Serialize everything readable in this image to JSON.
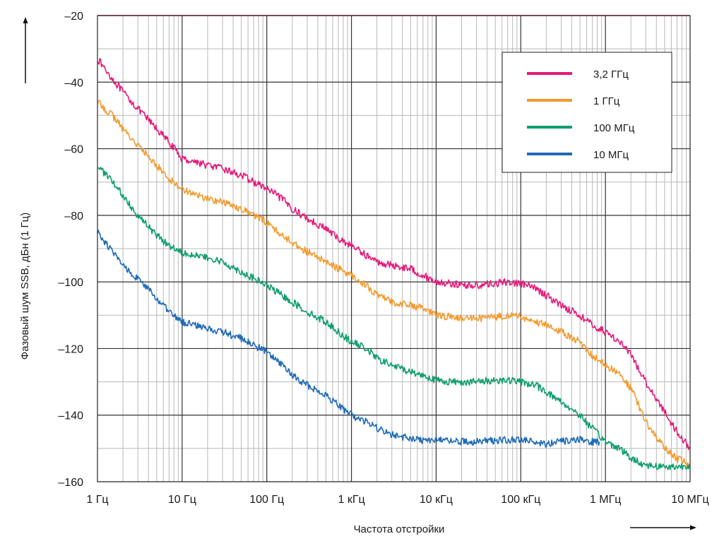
{
  "chart_data": {
    "type": "line",
    "title": "",
    "xlabel": "Частота отстройки",
    "ylabel": "Фазовый шум SSB, дБн (1 Гц)",
    "x_scale": "log",
    "xlim": [
      1,
      10000000
    ],
    "ylim": [
      -160,
      -20
    ],
    "grid": true,
    "legend_position": "top-right",
    "x_ticks": [
      {
        "value": 1,
        "label": "1 Гц"
      },
      {
        "value": 10,
        "label": "10 Гц"
      },
      {
        "value": 100,
        "label": "100 Гц"
      },
      {
        "value": 1000,
        "label": "1 кГц"
      },
      {
        "value": 10000,
        "label": "10 кГц"
      },
      {
        "value": 100000,
        "label": "100 кГц"
      },
      {
        "value": 1000000,
        "label": "1 МГц"
      },
      {
        "value": 10000000,
        "label": "10 МГц"
      }
    ],
    "y_ticks": [
      {
        "value": -20,
        "label": "–20"
      },
      {
        "value": -40,
        "label": "–40"
      },
      {
        "value": -60,
        "label": "–60"
      },
      {
        "value": -80,
        "label": "–80"
      },
      {
        "value": -100,
        "label": "–100"
      },
      {
        "value": -120,
        "label": "–120"
      },
      {
        "value": -140,
        "label": "–140"
      },
      {
        "value": -160,
        "label": "–160"
      }
    ],
    "series": [
      {
        "name": "3,2 ГГц",
        "color": "#e5197a",
        "x": [
          1,
          1.5,
          2,
          3,
          5,
          7,
          10,
          15,
          20,
          30,
          50,
          70,
          100,
          150,
          200,
          300,
          500,
          700,
          1000,
          1500,
          2000,
          3000,
          5000,
          7000,
          10000,
          15000,
          20000,
          30000,
          50000,
          70000,
          100000,
          150000,
          200000,
          300000,
          500000,
          700000,
          1000000,
          1500000,
          2000000,
          3000000,
          5000000,
          7000000,
          10000000
        ],
        "y": [
          -33,
          -39,
          -43,
          -48,
          -54,
          -58,
          -63,
          -64,
          -65,
          -66,
          -68,
          -70,
          -72,
          -75,
          -78,
          -81,
          -84,
          -87,
          -89,
          -92,
          -94,
          -95,
          -96,
          -98,
          -100,
          -100.5,
          -101,
          -101,
          -100.5,
          -100,
          -100.5,
          -102,
          -104,
          -107,
          -110,
          -113,
          -115,
          -118,
          -122,
          -130,
          -139,
          -145,
          -150
        ]
      },
      {
        "name": "1 ГГц",
        "color": "#f39a2d",
        "x": [
          1,
          1.5,
          2,
          3,
          5,
          7,
          10,
          15,
          20,
          30,
          50,
          70,
          100,
          150,
          200,
          300,
          500,
          700,
          1000,
          1500,
          2000,
          3000,
          5000,
          7000,
          10000,
          15000,
          20000,
          30000,
          50000,
          70000,
          100000,
          150000,
          200000,
          300000,
          500000,
          700000,
          1000000,
          1500000,
          2000000,
          3000000,
          5000000,
          7000000,
          10000000
        ],
        "y": [
          -46,
          -50,
          -54,
          -59,
          -65,
          -69,
          -72,
          -74,
          -75,
          -76,
          -78,
          -80,
          -82,
          -86,
          -88,
          -91,
          -94,
          -96,
          -98,
          -101,
          -104,
          -106,
          -107,
          -108,
          -110,
          -110.5,
          -111,
          -111,
          -110.5,
          -110,
          -110.5,
          -112,
          -113,
          -115,
          -118,
          -122,
          -125,
          -128,
          -132,
          -142,
          -150,
          -153,
          -155
        ]
      },
      {
        "name": "100 МГц",
        "color": "#0f9e6e",
        "x": [
          1,
          1.5,
          2,
          3,
          5,
          7,
          10,
          15,
          20,
          30,
          50,
          70,
          100,
          150,
          200,
          300,
          500,
          700,
          1000,
          1500,
          2000,
          3000,
          5000,
          7000,
          10000,
          15000,
          20000,
          30000,
          50000,
          70000,
          100000,
          150000,
          200000,
          300000,
          500000,
          700000,
          1000000,
          1500000,
          2000000,
          3000000,
          5000000,
          7000000,
          10000000
        ],
        "y": [
          -65,
          -70,
          -74,
          -80,
          -86,
          -89,
          -91,
          -92,
          -93,
          -94,
          -97,
          -99,
          -101,
          -104,
          -106,
          -109,
          -112,
          -115,
          -118,
          -120,
          -123,
          -125,
          -127,
          -128,
          -129.5,
          -130,
          -130,
          -130,
          -129.5,
          -129.5,
          -130,
          -131,
          -133,
          -136,
          -140,
          -144,
          -148,
          -150,
          -153,
          -155,
          -155.5,
          -155.5,
          -155
        ]
      },
      {
        "name": "10 МГц",
        "color": "#1f6bb5",
        "x": [
          1,
          1.5,
          2,
          3,
          5,
          7,
          10,
          15,
          20,
          30,
          50,
          70,
          100,
          150,
          200,
          300,
          500,
          700,
          1000,
          1500,
          2000,
          3000,
          5000,
          7000,
          10000,
          15000,
          20000,
          30000,
          50000,
          70000,
          100000,
          150000,
          200000,
          300000,
          500000,
          700000,
          850000
        ],
        "y": [
          -85,
          -91,
          -95,
          -99,
          -105,
          -109,
          -112,
          -113,
          -114,
          -115,
          -117,
          -119,
          -121,
          -125,
          -128,
          -131,
          -134,
          -137,
          -140,
          -142,
          -144,
          -146,
          -147,
          -147.5,
          -147.5,
          -147.5,
          -148,
          -148,
          -147.5,
          -147.5,
          -147.5,
          -148,
          -148.5,
          -148,
          -147.5,
          -148,
          -148
        ]
      }
    ]
  }
}
